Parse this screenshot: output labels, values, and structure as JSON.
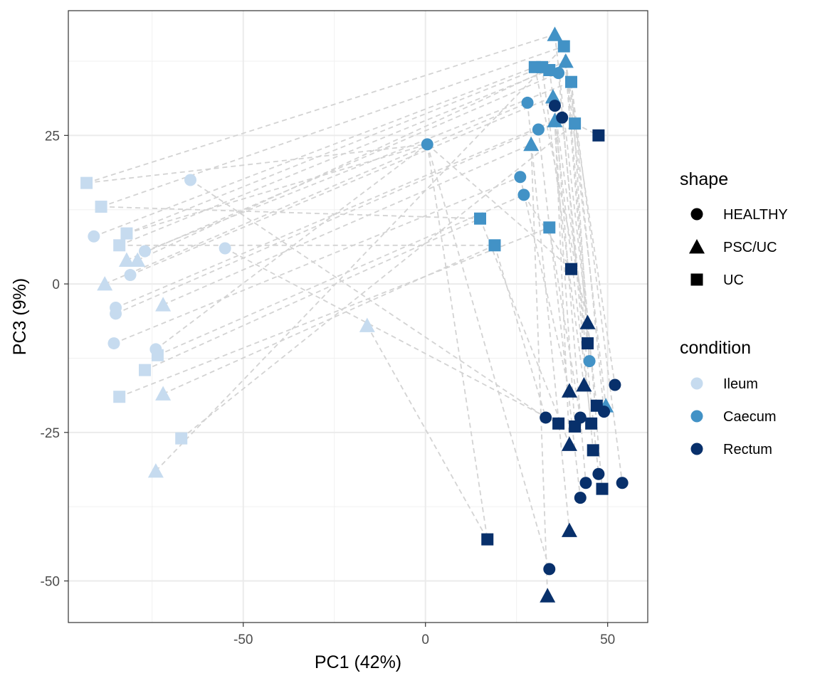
{
  "chart_data": {
    "type": "scatter",
    "title": "",
    "xlabel": "PC1 (42%)",
    "ylabel": "PC3 (9%)",
    "xlim": [
      -98,
      61
    ],
    "ylim": [
      -57,
      46
    ],
    "x_ticks": [
      -50,
      0,
      50
    ],
    "x_tick_labels": [
      "-50",
      "0",
      "50"
    ],
    "y_ticks": [
      -50,
      -25,
      0,
      25
    ],
    "y_tick_labels": [
      "-50",
      "-25",
      "0",
      "25"
    ],
    "grid": true,
    "legend_position": "right",
    "legends": [
      {
        "title": "shape",
        "entries": [
          {
            "label": "HEALTHY",
            "symbol": "circle"
          },
          {
            "label": "PSC/UC",
            "symbol": "triangle"
          },
          {
            "label": "UC",
            "symbol": "square"
          }
        ]
      },
      {
        "title": "condition",
        "entries": [
          {
            "label": "Ileum",
            "color": "#c6dbef"
          },
          {
            "label": "Caecum",
            "color": "#4292c6"
          },
          {
            "label": "Rectum",
            "color": "#08306b"
          }
        ]
      }
    ],
    "colors": {
      "Ileum": "#c6dbef",
      "Caecum": "#4292c6",
      "Rectum": "#08306b",
      "connector": "#d3d3d3"
    },
    "points": [
      {
        "x": -91,
        "y": 8,
        "shape": "HEALTHY",
        "condition": "Ileum"
      },
      {
        "x": -64.5,
        "y": 17.5,
        "shape": "HEALTHY",
        "condition": "Ileum"
      },
      {
        "x": -55,
        "y": 6,
        "shape": "HEALTHY",
        "condition": "Ileum"
      },
      {
        "x": -77,
        "y": 5.5,
        "shape": "HEALTHY",
        "condition": "Ileum"
      },
      {
        "x": -81,
        "y": 1.5,
        "shape": "HEALTHY",
        "condition": "Ileum"
      },
      {
        "x": -85,
        "y": -4,
        "shape": "HEALTHY",
        "condition": "Ileum"
      },
      {
        "x": -85,
        "y": -5,
        "shape": "HEALTHY",
        "condition": "Ileum"
      },
      {
        "x": -85.5,
        "y": -10,
        "shape": "HEALTHY",
        "condition": "Ileum"
      },
      {
        "x": -74,
        "y": -11,
        "shape": "HEALTHY",
        "condition": "Ileum"
      },
      {
        "x": -93,
        "y": 17,
        "shape": "UC",
        "condition": "Ileum"
      },
      {
        "x": -89,
        "y": 13,
        "shape": "UC",
        "condition": "Ileum"
      },
      {
        "x": -82,
        "y": 8.5,
        "shape": "UC",
        "condition": "Ileum"
      },
      {
        "x": -84,
        "y": 6.5,
        "shape": "UC",
        "condition": "Ileum"
      },
      {
        "x": -73.5,
        "y": -12,
        "shape": "UC",
        "condition": "Ileum"
      },
      {
        "x": -77,
        "y": -14.5,
        "shape": "UC",
        "condition": "Ileum"
      },
      {
        "x": -84,
        "y": -19,
        "shape": "UC",
        "condition": "Ileum"
      },
      {
        "x": -67,
        "y": -26,
        "shape": "UC",
        "condition": "Ileum"
      },
      {
        "x": -82,
        "y": 4,
        "shape": "PSC/UC",
        "condition": "Ileum"
      },
      {
        "x": -79,
        "y": 4,
        "shape": "PSC/UC",
        "condition": "Ileum"
      },
      {
        "x": -88,
        "y": 0,
        "shape": "PSC/UC",
        "condition": "Ileum"
      },
      {
        "x": -72,
        "y": -3.5,
        "shape": "PSC/UC",
        "condition": "Ileum"
      },
      {
        "x": -72,
        "y": -18.5,
        "shape": "PSC/UC",
        "condition": "Ileum"
      },
      {
        "x": -74,
        "y": -31.5,
        "shape": "PSC/UC",
        "condition": "Ileum"
      },
      {
        "x": -16,
        "y": -7,
        "shape": "PSC/UC",
        "condition": "Ileum"
      },
      {
        "x": 0.5,
        "y": 23.5,
        "shape": "HEALTHY",
        "condition": "Caecum"
      },
      {
        "x": 28,
        "y": 30.5,
        "shape": "HEALTHY",
        "condition": "Caecum"
      },
      {
        "x": 31,
        "y": 26,
        "shape": "HEALTHY",
        "condition": "Caecum"
      },
      {
        "x": 26,
        "y": 18,
        "shape": "HEALTHY",
        "condition": "Caecum"
      },
      {
        "x": 27,
        "y": 15,
        "shape": "HEALTHY",
        "condition": "Caecum"
      },
      {
        "x": 36.5,
        "y": 35.5,
        "shape": "HEALTHY",
        "condition": "Caecum"
      },
      {
        "x": 45,
        "y": -13,
        "shape": "HEALTHY",
        "condition": "Caecum"
      },
      {
        "x": 15,
        "y": 11,
        "shape": "UC",
        "condition": "Caecum"
      },
      {
        "x": 19,
        "y": 6.5,
        "shape": "UC",
        "condition": "Caecum"
      },
      {
        "x": 34,
        "y": 9.5,
        "shape": "UC",
        "condition": "Caecum"
      },
      {
        "x": 30,
        "y": 36.5,
        "shape": "UC",
        "condition": "Caecum"
      },
      {
        "x": 32,
        "y": 36.5,
        "shape": "UC",
        "condition": "Caecum"
      },
      {
        "x": 34,
        "y": 36,
        "shape": "UC",
        "condition": "Caecum"
      },
      {
        "x": 38,
        "y": 40,
        "shape": "UC",
        "condition": "Caecum"
      },
      {
        "x": 40,
        "y": 34,
        "shape": "UC",
        "condition": "Caecum"
      },
      {
        "x": 41,
        "y": 27,
        "shape": "UC",
        "condition": "Caecum"
      },
      {
        "x": 35.5,
        "y": 42,
        "shape": "PSC/UC",
        "condition": "Caecum"
      },
      {
        "x": 38.5,
        "y": 37.5,
        "shape": "PSC/UC",
        "condition": "Caecum"
      },
      {
        "x": 35,
        "y": 31.5,
        "shape": "PSC/UC",
        "condition": "Caecum"
      },
      {
        "x": 35.5,
        "y": 27.5,
        "shape": "PSC/UC",
        "condition": "Caecum"
      },
      {
        "x": 29,
        "y": 23.5,
        "shape": "PSC/UC",
        "condition": "Caecum"
      },
      {
        "x": 49.5,
        "y": -20.5,
        "shape": "PSC/UC",
        "condition": "Caecum"
      },
      {
        "x": 35.5,
        "y": 30,
        "shape": "HEALTHY",
        "condition": "Rectum"
      },
      {
        "x": 37.5,
        "y": 28,
        "shape": "HEALTHY",
        "condition": "Rectum"
      },
      {
        "x": 52,
        "y": -17,
        "shape": "HEALTHY",
        "condition": "Rectum"
      },
      {
        "x": 33,
        "y": -22.5,
        "shape": "HEALTHY",
        "condition": "Rectum"
      },
      {
        "x": 42.5,
        "y": -22.5,
        "shape": "HEALTHY",
        "condition": "Rectum"
      },
      {
        "x": 49,
        "y": -21.5,
        "shape": "HEALTHY",
        "condition": "Rectum"
      },
      {
        "x": 47.5,
        "y": -32,
        "shape": "HEALTHY",
        "condition": "Rectum"
      },
      {
        "x": 44,
        "y": -33.5,
        "shape": "HEALTHY",
        "condition": "Rectum"
      },
      {
        "x": 54,
        "y": -33.5,
        "shape": "HEALTHY",
        "condition": "Rectum"
      },
      {
        "x": 42.5,
        "y": -36,
        "shape": "HEALTHY",
        "condition": "Rectum"
      },
      {
        "x": 34,
        "y": -48,
        "shape": "HEALTHY",
        "condition": "Rectum"
      },
      {
        "x": 47.5,
        "y": 25,
        "shape": "UC",
        "condition": "Rectum"
      },
      {
        "x": 40,
        "y": 2.5,
        "shape": "UC",
        "condition": "Rectum"
      },
      {
        "x": 44.5,
        "y": -10,
        "shape": "UC",
        "condition": "Rectum"
      },
      {
        "x": 47,
        "y": -20.5,
        "shape": "UC",
        "condition": "Rectum"
      },
      {
        "x": 36.5,
        "y": -23.5,
        "shape": "UC",
        "condition": "Rectum"
      },
      {
        "x": 41,
        "y": -24,
        "shape": "UC",
        "condition": "Rectum"
      },
      {
        "x": 45.5,
        "y": -23.5,
        "shape": "UC",
        "condition": "Rectum"
      },
      {
        "x": 46,
        "y": -28,
        "shape": "UC",
        "condition": "Rectum"
      },
      {
        "x": 48.5,
        "y": -34.5,
        "shape": "UC",
        "condition": "Rectum"
      },
      {
        "x": 17,
        "y": -43,
        "shape": "UC",
        "condition": "Rectum"
      },
      {
        "x": 44.5,
        "y": -6.5,
        "shape": "PSC/UC",
        "condition": "Rectum"
      },
      {
        "x": 39.5,
        "y": -18,
        "shape": "PSC/UC",
        "condition": "Rectum"
      },
      {
        "x": 43.5,
        "y": -17,
        "shape": "PSC/UC",
        "condition": "Rectum"
      },
      {
        "x": 39.5,
        "y": -27,
        "shape": "PSC/UC",
        "condition": "Rectum"
      },
      {
        "x": 39.5,
        "y": -41.5,
        "shape": "PSC/UC",
        "condition": "Rectum"
      },
      {
        "x": 33.5,
        "y": -52.5,
        "shape": "PSC/UC",
        "condition": "Rectum"
      }
    ],
    "connections": [
      [
        -93,
        17,
        35.5,
        42
      ],
      [
        -89,
        13,
        38,
        40
      ],
      [
        -91,
        8,
        30,
        36.5
      ],
      [
        -82,
        8.5,
        32,
        36.5
      ],
      [
        -84,
        6.5,
        34,
        36
      ],
      [
        -82,
        4,
        36.5,
        35.5
      ],
      [
        -79,
        4,
        38.5,
        37.5
      ],
      [
        -77,
        5.5,
        40,
        34
      ],
      [
        -88,
        0,
        28,
        30.5
      ],
      [
        -81,
        1.5,
        35,
        31.5
      ],
      [
        -85,
        -4,
        35.5,
        27.5
      ],
      [
        -85,
        -5,
        31,
        26
      ],
      [
        -72,
        -3.5,
        29,
        23.5
      ],
      [
        -85.5,
        -10,
        26,
        18
      ],
      [
        -74,
        -11,
        0.5,
        23.5
      ],
      [
        -73.5,
        -12,
        27,
        15
      ],
      [
        -77,
        -14.5,
        15,
        11
      ],
      [
        -84,
        -19,
        34,
        9.5
      ],
      [
        -72,
        -18.5,
        19,
        6.5
      ],
      [
        -67,
        -26,
        41,
        27
      ],
      [
        -74,
        -31.5,
        38,
        40
      ],
      [
        -64.5,
        17.5,
        33,
        -22.5
      ],
      [
        -55,
        6,
        36.5,
        -23.5
      ],
      [
        -16,
        -7,
        17,
        -43
      ],
      [
        -93,
        17,
        0.5,
        23.5
      ],
      [
        -82,
        8.5,
        0.5,
        23.5
      ],
      [
        -89,
        13,
        15,
        11
      ],
      [
        -84,
        6.5,
        19,
        6.5
      ],
      [
        0.5,
        23.5,
        34,
        -48
      ],
      [
        0.5,
        23.5,
        17,
        -43
      ],
      [
        0.5,
        23.5,
        40,
        2.5
      ],
      [
        15,
        11,
        39.5,
        -27
      ],
      [
        19,
        6.5,
        33,
        -22.5
      ],
      [
        34,
        9.5,
        42.5,
        -22.5
      ],
      [
        26,
        18,
        39.5,
        -18
      ],
      [
        27,
        15,
        40,
        2.5
      ],
      [
        28,
        30.5,
        39.5,
        -41.5
      ],
      [
        29,
        23.5,
        33.5,
        -52.5
      ],
      [
        30,
        36.5,
        44.5,
        -6.5
      ],
      [
        32,
        36.5,
        43.5,
        -17
      ],
      [
        34,
        36,
        44.5,
        -10
      ],
      [
        35.5,
        42,
        47,
        -20.5
      ],
      [
        38,
        40,
        49.5,
        -20.5
      ],
      [
        38.5,
        37.5,
        52,
        -17
      ],
      [
        40,
        34,
        49,
        -21.5
      ],
      [
        41,
        27,
        47.5,
        25
      ],
      [
        35,
        31.5,
        41,
        -24
      ],
      [
        35.5,
        27.5,
        45.5,
        -23.5
      ],
      [
        36.5,
        35.5,
        46,
        -28
      ],
      [
        31,
        26,
        42.5,
        -36
      ],
      [
        37.5,
        28,
        47.5,
        -32
      ],
      [
        35.5,
        30,
        44,
        -33.5
      ],
      [
        40,
        34,
        54,
        -33.5
      ],
      [
        38.5,
        37.5,
        48.5,
        -34.5
      ],
      [
        45,
        -13,
        40,
        34
      ],
      [
        35.5,
        27.5,
        39.5,
        -27
      ],
      [
        38,
        40,
        45,
        -13
      ]
    ]
  }
}
